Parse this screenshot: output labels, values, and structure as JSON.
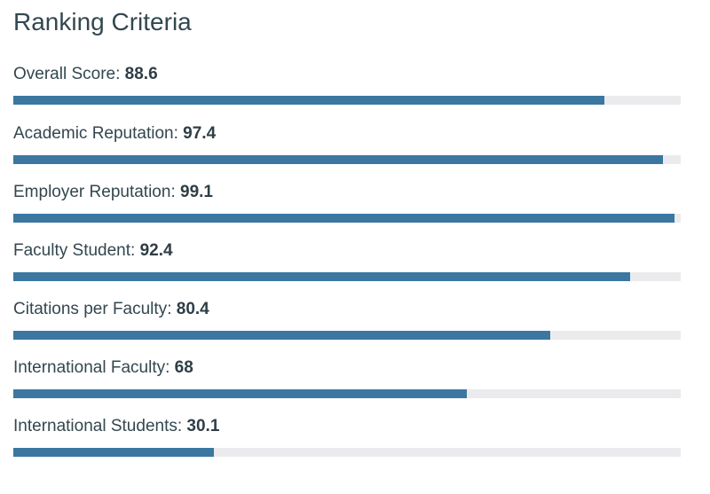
{
  "title": "Ranking Criteria",
  "colors": {
    "bar_fill": "#3b77a0",
    "bar_track": "#ebebee"
  },
  "criteria": [
    {
      "label": "Overall Score",
      "score": "88.6",
      "fraction": 0.886
    },
    {
      "label": "Academic Reputation",
      "score": "97.4",
      "fraction": 0.974
    },
    {
      "label": "Employer Reputation",
      "score": "99.1",
      "fraction": 0.991
    },
    {
      "label": "Faculty Student",
      "score": "92.4",
      "fraction": 0.924
    },
    {
      "label": "Citations per Faculty",
      "score": "80.4",
      "fraction": 0.804
    },
    {
      "label": "International Faculty",
      "score": "68",
      "fraction": 0.68
    },
    {
      "label": "International Students",
      "score": "30.1",
      "fraction": 0.301
    }
  ]
}
